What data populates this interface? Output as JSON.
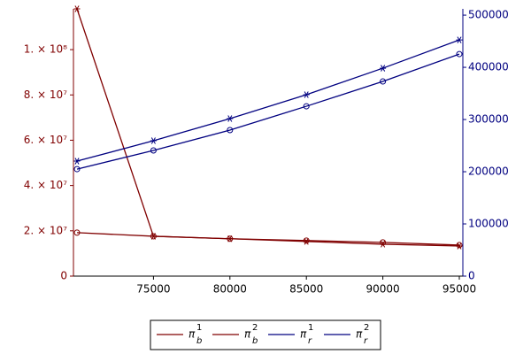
{
  "chart_data": {
    "type": "line",
    "x": [
      70000,
      75000,
      80000,
      85000,
      90000,
      95000
    ],
    "xlim": [
      70000,
      95000
    ],
    "xticks": [
      75000,
      80000,
      85000,
      90000,
      95000
    ],
    "ylim": [
      0,
      118000000
    ],
    "yticks": [
      0,
      {
        "value": 20000000,
        "label": "2. × 10⁷"
      },
      {
        "value": 40000000,
        "label": "4. × 10⁷"
      },
      {
        "value": 60000000,
        "label": "6. × 10⁷"
      },
      {
        "value": 80000000,
        "label": "8. × 10⁷"
      },
      {
        "value": 100000000,
        "label": "1. × 10⁸"
      }
    ],
    "y_color": "#800000",
    "y2lim": [
      0,
      512000
    ],
    "y2ticks": [
      0,
      100000,
      200000,
      300000,
      400000,
      500000
    ],
    "y2_color": "#000080",
    "series": [
      {
        "name": "π",
        "superscript": "1",
        "subscript": "b",
        "color": "#800000",
        "marker": "circle",
        "values": [
          19200000,
          17600000,
          16500000,
          15700000,
          14900000,
          13700000
        ]
      },
      {
        "name": "π",
        "superscript": "2",
        "subscript": "b",
        "color": "#800000",
        "marker": "star",
        "values": [
          118000000,
          17600000,
          16500000,
          15300000,
          14100000,
          13300000
        ]
      },
      {
        "name": "π",
        "superscript": "1",
        "subscript": "r",
        "color": "#000080",
        "marker": "circle",
        "axis": "y2",
        "values": [
          205000,
          240700,
          279700,
          325400,
          372900,
          425400
        ]
      },
      {
        "name": "π",
        "superscript": "2",
        "subscript": "r",
        "color": "#000080",
        "marker": "star",
        "axis": "y2",
        "values": [
          220300,
          259300,
          301700,
          347500,
          398300,
          452500
        ]
      }
    ]
  }
}
